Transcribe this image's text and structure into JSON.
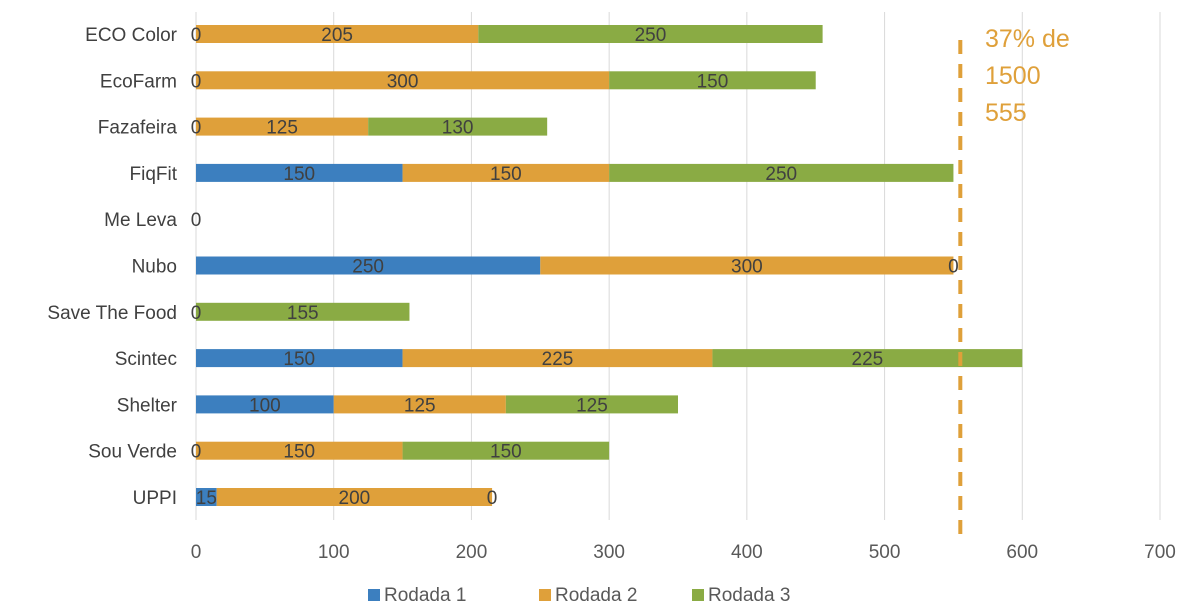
{
  "chart_data": {
    "type": "bar",
    "orientation": "horizontal",
    "stacked": true,
    "categories": [
      "ECO Color",
      "EcoFarm",
      "Fazafeira",
      "FiqFit",
      "Me Leva",
      "Nubo",
      "Save The Food",
      "Scintec",
      "Shelter",
      "Sou Verde",
      "UPPI"
    ],
    "series": [
      {
        "name": "Rodada 1",
        "color": "#3c7fbf",
        "values": [
          0,
          0,
          0,
          150,
          0,
          250,
          0,
          150,
          100,
          0,
          15
        ]
      },
      {
        "name": "Rodada 2",
        "color": "#dfa03a",
        "values": [
          205,
          300,
          125,
          150,
          null,
          300,
          null,
          225,
          125,
          150,
          200
        ]
      },
      {
        "name": "Rodada 3",
        "color": "#8aab44",
        "values": [
          250,
          150,
          130,
          250,
          null,
          0,
          155,
          225,
          125,
          150,
          0
        ]
      }
    ],
    "xlim": [
      0,
      700
    ],
    "xticks": [
      "0",
      "100",
      "200",
      "300",
      "400",
      "500",
      "600",
      "700"
    ],
    "grid": true,
    "legend_position": "bottom",
    "reference_line": {
      "value": 555,
      "color": "#dfa03a",
      "style": "dashed",
      "label_lines": [
        "37% de",
        "1500",
        "555"
      ]
    }
  }
}
